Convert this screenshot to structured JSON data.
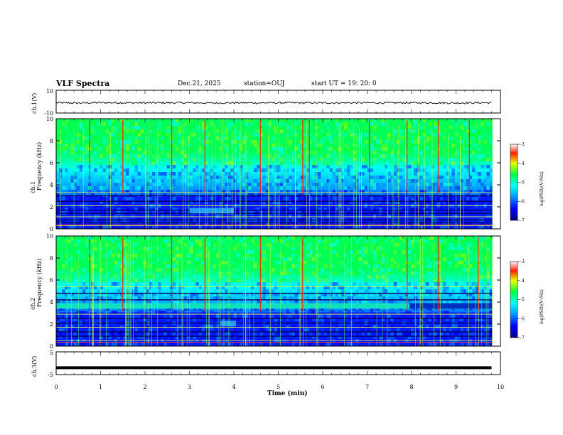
{
  "header": {
    "title": "VLF Spectra",
    "date": "Dec.21, 2025",
    "station": "station=OUJ",
    "start": "start UT =  19: 20: 0"
  },
  "chart_data": [
    {
      "type": "line",
      "panel": "ch1-waveform",
      "ylabel": "ch.1(V)",
      "ylim": [
        -10,
        10
      ],
      "ytick_labels": [
        "10",
        "-10"
      ],
      "xlim": [
        0,
        10
      ],
      "x": [
        0,
        0.5,
        1,
        1.5,
        2,
        2.5,
        3,
        3.5,
        4,
        4.5,
        5,
        5.5,
        6,
        6.5,
        7,
        7.5,
        8,
        8.5,
        9,
        9.5,
        9.8
      ],
      "y": [
        -1,
        -1.2,
        -0.9,
        -1,
        -1.1,
        -1,
        -1,
        -1.2,
        -1,
        -1.1,
        -1,
        -1,
        -1.1,
        -1,
        -1,
        -1.1,
        -1,
        -1,
        -1.2,
        -1,
        -1
      ]
    },
    {
      "type": "heatmap",
      "panel": "ch1-spectrogram",
      "ylabel": "ch.1",
      "ylabel2": "Frequency (kHz)",
      "ylim": [
        0,
        10
      ],
      "yticks": [
        0,
        2,
        4,
        6,
        8,
        10
      ],
      "xlim": [
        0,
        10
      ],
      "data_end_min": 9.82,
      "colorbar": {
        "label": "log(PSD)(V²/Hz)",
        "range": [
          -7,
          -3
        ],
        "ticks": [
          -3,
          -4,
          -5,
          -6,
          -7
        ]
      },
      "bursts_min": [
        0.75,
        1.5,
        2.6,
        3.35,
        4.6,
        5.55,
        5.7,
        7.05,
        7.9,
        8.6,
        9.3
      ],
      "bands_khz": [
        0.3,
        0.55,
        0.8,
        1.1,
        1.4,
        1.7,
        2.1,
        2.5,
        3.0,
        3.3
      ],
      "patch": {
        "t": [
          3.0,
          4.0
        ],
        "f": [
          1.4,
          1.9
        ]
      }
    },
    {
      "type": "heatmap",
      "panel": "ch2-spectrogram",
      "ylabel": "ch.2",
      "ylabel2": "Frequency (kHz)",
      "ylim": [
        0,
        10
      ],
      "yticks": [
        0,
        2,
        4,
        6,
        8,
        10
      ],
      "xlim": [
        0,
        10
      ],
      "data_end_min": 9.82,
      "colorbar": {
        "label": "log(PSD)(V²/Hz)",
        "range": [
          -7,
          -3
        ],
        "ticks": [
          -3,
          -4,
          -5,
          -6,
          -7
        ]
      },
      "bursts_min": [
        0.75,
        1.5,
        2.6,
        3.35,
        4.6,
        5.55,
        7.9,
        8.6,
        9.5
      ],
      "bands_khz": [
        0.5,
        0.9,
        1.3,
        1.7,
        2.1,
        2.5,
        2.9,
        4.2,
        4.8,
        5.4
      ],
      "strong_band": {
        "f": [
          3.4,
          3.9
        ],
        "t_end": 7.95
      },
      "patch": {
        "t": [
          3.7,
          4.05
        ],
        "f": [
          1.8,
          2.3
        ]
      }
    },
    {
      "type": "line",
      "panel": "ch3-waveform",
      "ylabel": "ch.3(V)",
      "ylim": [
        -5,
        5
      ],
      "ytick_labels": [
        "5",
        "-5"
      ],
      "xlim": [
        0,
        10
      ],
      "x": [
        0,
        9.8
      ],
      "y": [
        -2,
        -2
      ]
    }
  ],
  "xaxis": {
    "label": "Time (min)",
    "tick_labels": [
      "0",
      "1",
      "2",
      "3",
      "4",
      "5",
      "6",
      "7",
      "8",
      "9",
      "10"
    ]
  }
}
